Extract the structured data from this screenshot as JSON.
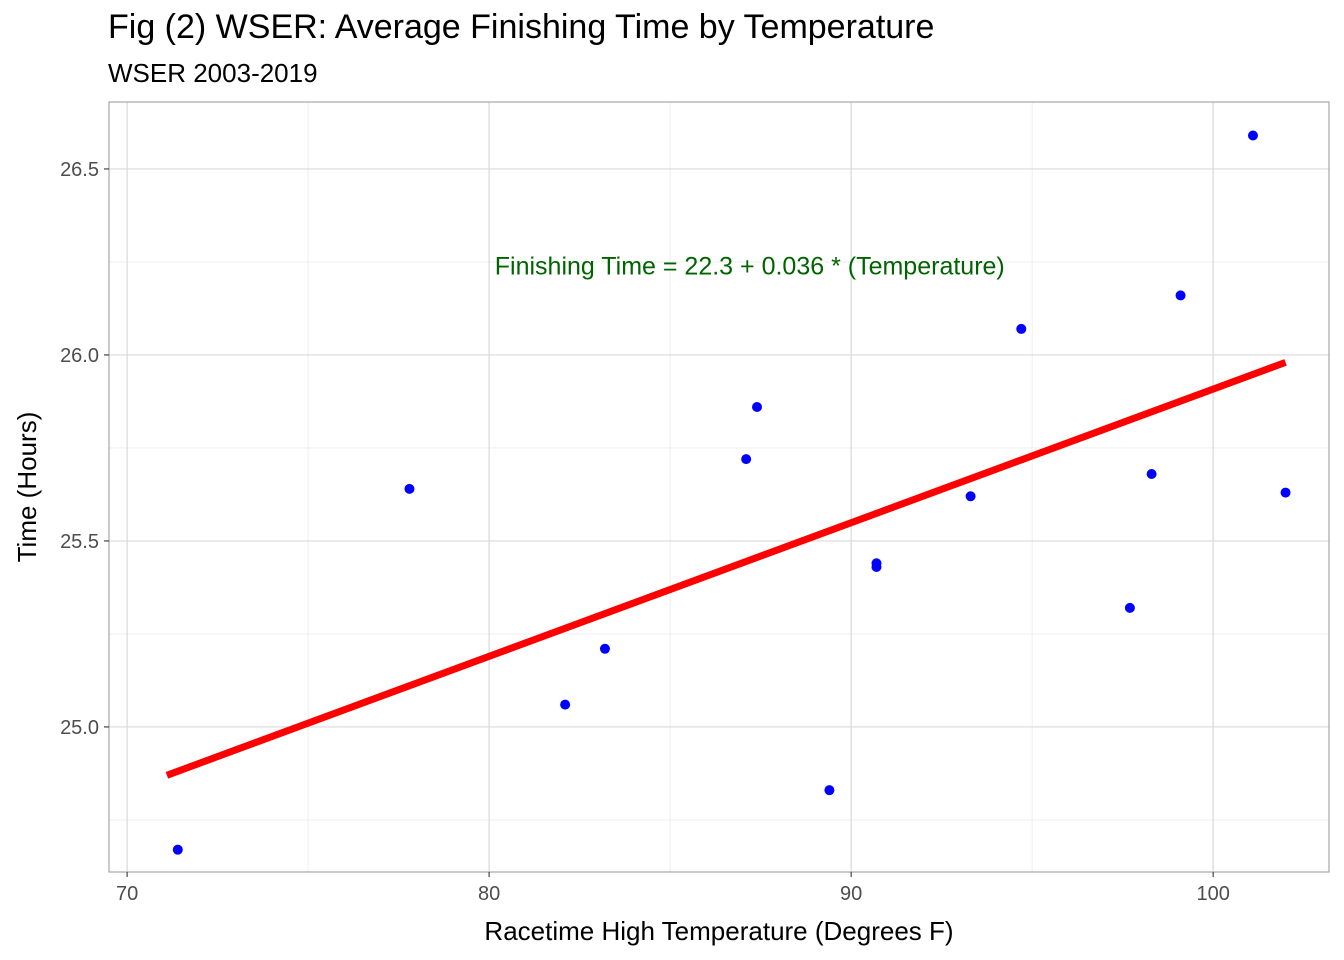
{
  "title": "Fig (2) WSER: Average Finishing Time by Temperature",
  "subtitle": "WSER 2003-2019",
  "chart_data": {
    "type": "scatter",
    "title": "Fig (2) WSER: Average Finishing Time by Temperature",
    "subtitle": "WSER 2003-2019",
    "xlabel": "Racetime High Temperature (Degrees F)",
    "ylabel": "Time (Hours)",
    "xlim": [
      69.5,
      103.2
    ],
    "ylim": [
      24.61,
      26.68
    ],
    "xticks": [
      70,
      80,
      90,
      100
    ],
    "xtick_labels": [
      "70",
      "80",
      "90",
      "100"
    ],
    "yticks": [
      25.0,
      25.5,
      26.0,
      26.5
    ],
    "ytick_labels": [
      "25.0",
      "25.5",
      "26.0",
      "26.5"
    ],
    "grid": true,
    "points": [
      {
        "x": 71.4,
        "y": 24.67
      },
      {
        "x": 77.8,
        "y": 25.64
      },
      {
        "x": 82.1,
        "y": 25.06
      },
      {
        "x": 83.2,
        "y": 25.21
      },
      {
        "x": 87.1,
        "y": 25.72
      },
      {
        "x": 87.4,
        "y": 25.86
      },
      {
        "x": 89.4,
        "y": 24.83
      },
      {
        "x": 90.7,
        "y": 25.44
      },
      {
        "x": 90.7,
        "y": 25.43
      },
      {
        "x": 93.3,
        "y": 25.62
      },
      {
        "x": 94.7,
        "y": 26.07
      },
      {
        "x": 97.7,
        "y": 25.32
      },
      {
        "x": 98.3,
        "y": 25.68
      },
      {
        "x": 99.1,
        "y": 26.16
      },
      {
        "x": 101.1,
        "y": 26.59
      },
      {
        "x": 102.0,
        "y": 25.63
      }
    ],
    "fit_line": {
      "x": [
        71.1,
        102.0
      ],
      "y": [
        24.87,
        25.98
      ]
    },
    "annotation": {
      "text": "Finishing Time = 22.3 + 0.036 * (Temperature)",
      "x": 87.2,
      "y": 26.24
    },
    "colors": {
      "points": "#0000ff",
      "fit_line": "#ff0000",
      "annotation": "#006400",
      "grid": "#d9d9d9",
      "panel_border": "#a6a6a6"
    }
  }
}
